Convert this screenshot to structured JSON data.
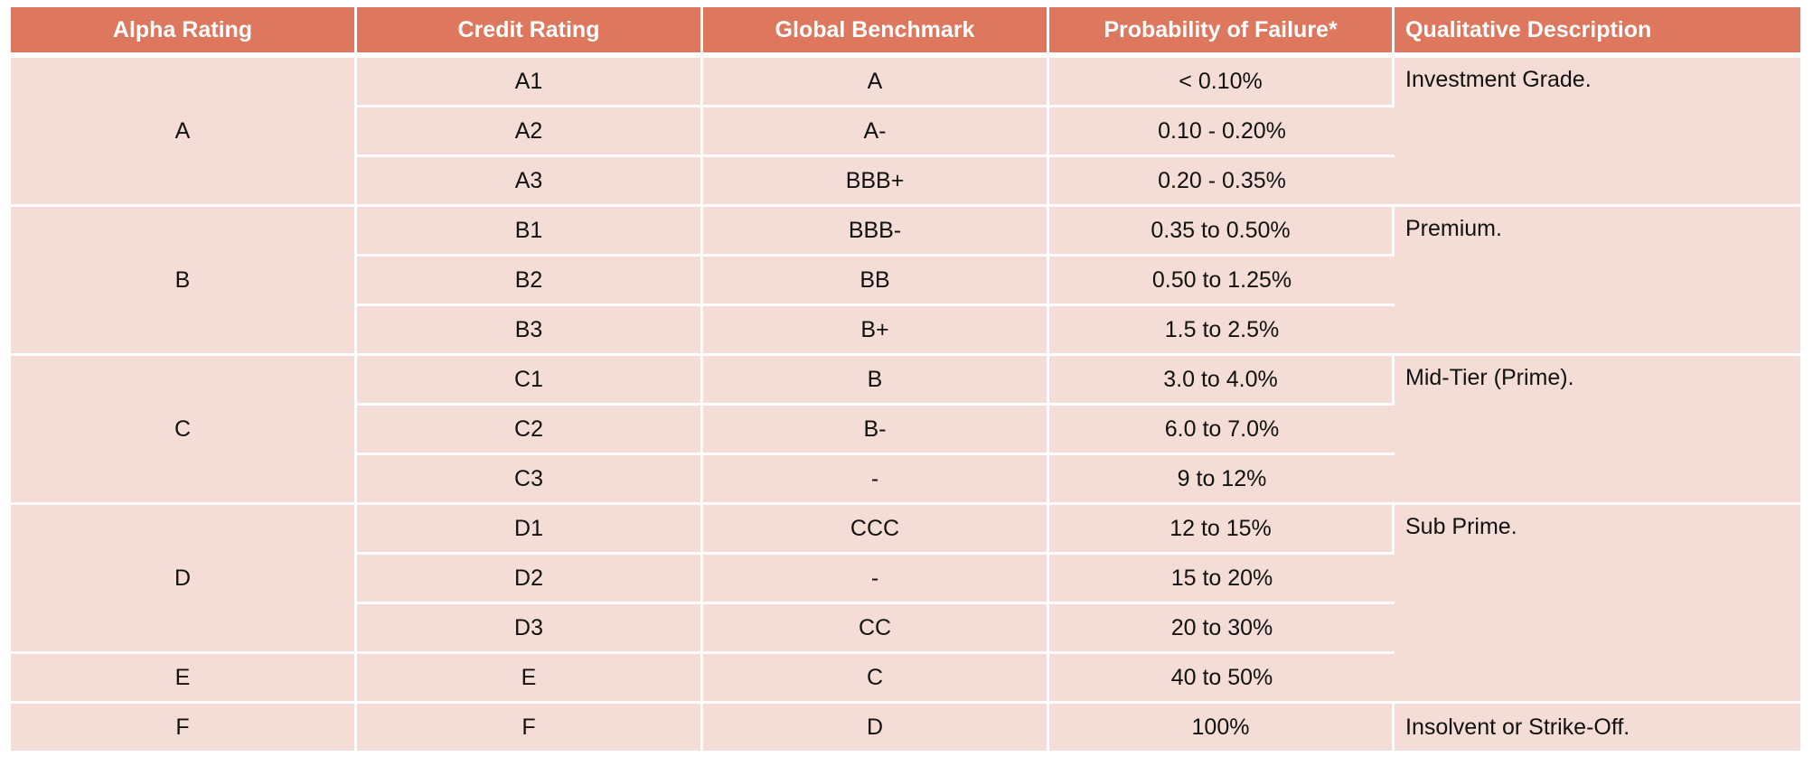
{
  "headers": [
    "Alpha Rating",
    "Credit Rating",
    "Global Benchmark",
    "Probability of Failure*",
    "Qualitative Description"
  ],
  "alpha": [
    "A",
    "B",
    "C",
    "D",
    "E",
    "F"
  ],
  "rows": [
    {
      "credit": "A1",
      "benchmark": "A",
      "probability": "< 0.10%"
    },
    {
      "credit": "A2",
      "benchmark": "A-",
      "probability": "0.10 - 0.20%"
    },
    {
      "credit": "A3",
      "benchmark": "BBB+",
      "probability": "0.20 - 0.35%"
    },
    {
      "credit": "B1",
      "benchmark": "BBB-",
      "probability": "0.35 to 0.50%"
    },
    {
      "credit": "B2",
      "benchmark": "BB",
      "probability": "0.50 to 1.25%"
    },
    {
      "credit": "B3",
      "benchmark": "B+",
      "probability": "1.5 to 2.5%"
    },
    {
      "credit": "C1",
      "benchmark": "B",
      "probability": "3.0 to 4.0%"
    },
    {
      "credit": "C2",
      "benchmark": "B-",
      "probability": "6.0 to 7.0%"
    },
    {
      "credit": "C3",
      "benchmark": "-",
      "probability": "9 to 12%"
    },
    {
      "credit": "D1",
      "benchmark": "CCC",
      "probability": "12 to 15%"
    },
    {
      "credit": "D2",
      "benchmark": "-",
      "probability": "15 to 20%"
    },
    {
      "credit": "D3",
      "benchmark": "CC",
      "probability": "20 to 30%"
    },
    {
      "credit": "E",
      "benchmark": "C",
      "probability": "40 to 50%"
    },
    {
      "credit": "F",
      "benchmark": "D",
      "probability": "100%"
    }
  ],
  "descriptions": [
    "Investment Grade.",
    "Premium.",
    "Mid-Tier (Prime).",
    "Sub Prime.",
    "Insolvent or Strike-Off."
  ],
  "colors": {
    "header_bg": "#dd775e",
    "cell_bg": "#f5ddd7",
    "header_text": "#ffffff"
  }
}
